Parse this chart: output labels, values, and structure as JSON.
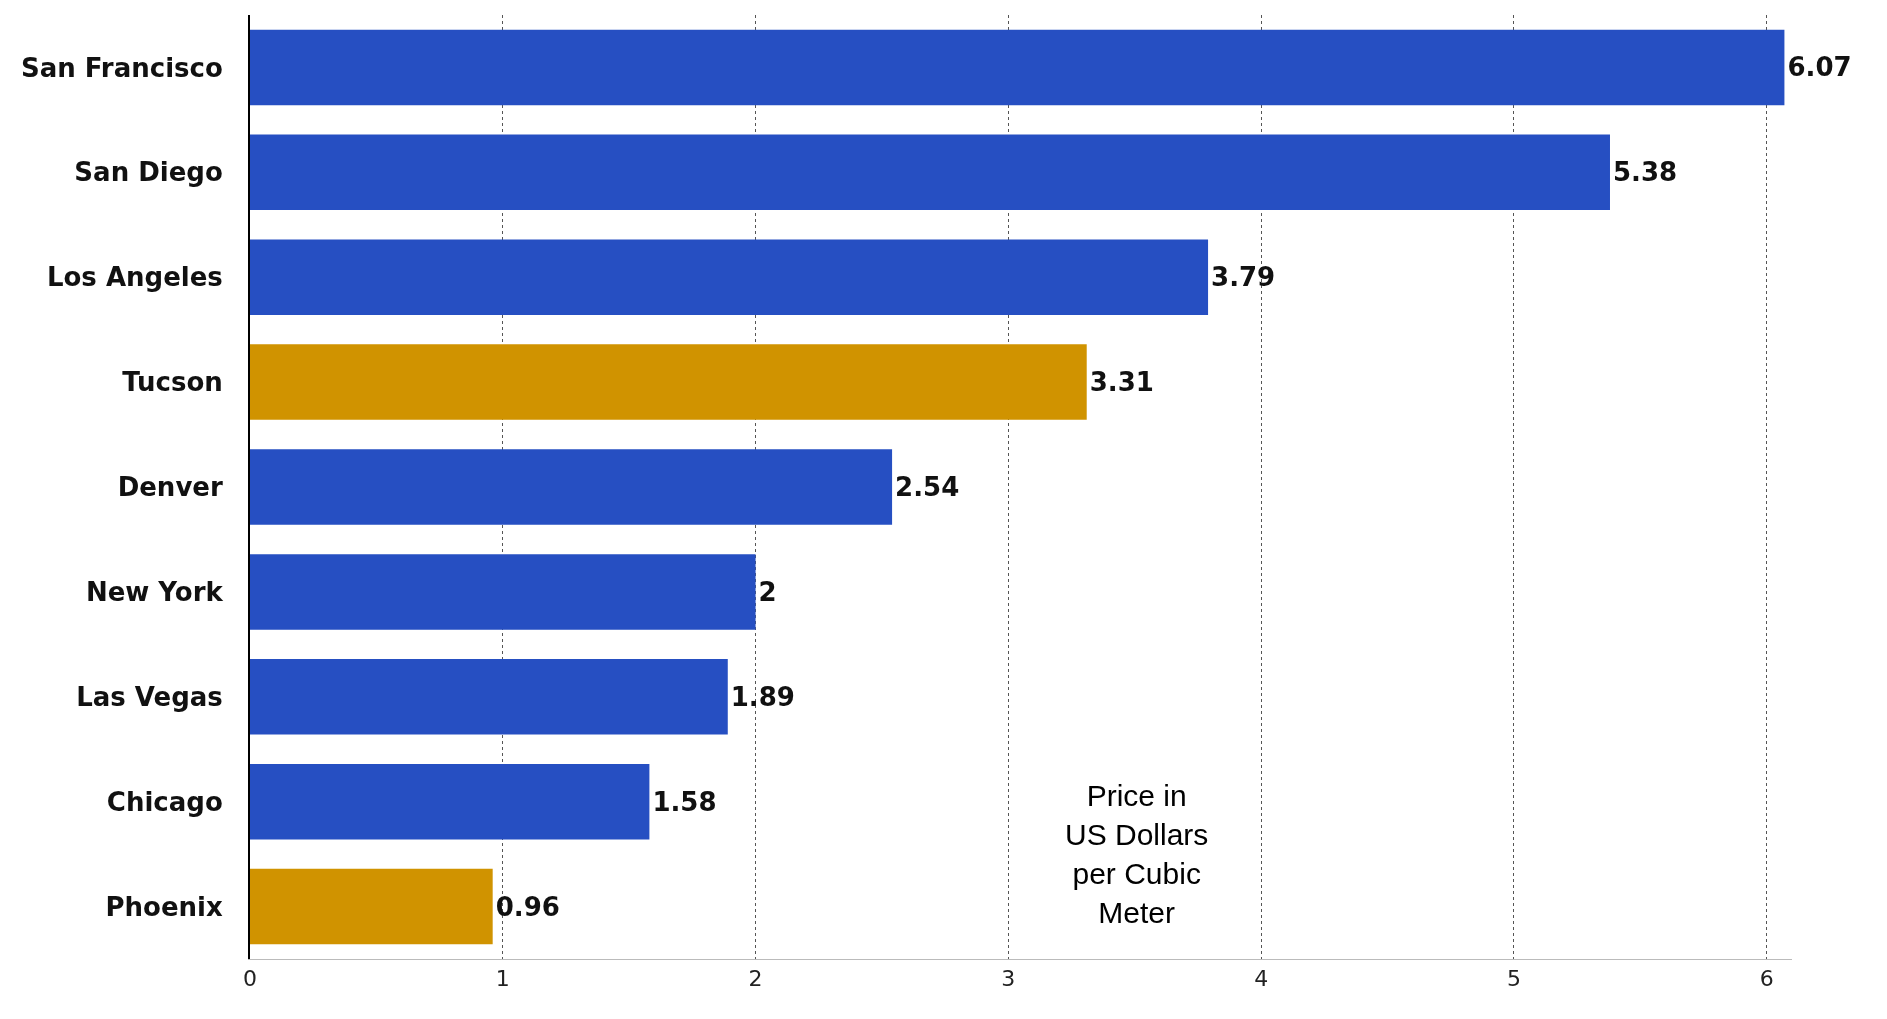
{
  "chart_data": {
    "type": "bar",
    "orientation": "horizontal",
    "categories": [
      "San Francisco",
      "San Diego",
      "Los Angeles",
      "Tucson",
      "Denver",
      "New York",
      "Las Vegas",
      "Chicago",
      "Phoenix"
    ],
    "values": [
      6.07,
      5.38,
      3.79,
      3.31,
      2.54,
      2,
      1.89,
      1.58,
      0.96
    ],
    "colors": [
      "#264fc2",
      "#264fc2",
      "#264fc2",
      "#d09300",
      "#264fc2",
      "#264fc2",
      "#264fc2",
      "#264fc2",
      "#d09300"
    ],
    "xlim": [
      0,
      6.1
    ],
    "xticks": [
      0,
      1,
      2,
      3,
      4,
      5,
      6
    ],
    "grid": "x",
    "data_labels": true,
    "annotations": [
      "Price in US Dollars per Cubic Meter"
    ]
  }
}
